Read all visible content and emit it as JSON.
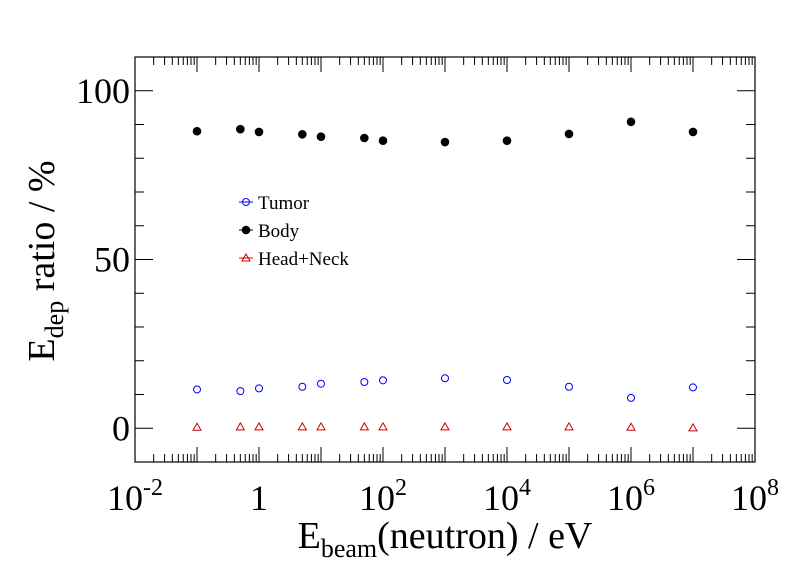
{
  "chart_data": {
    "type": "scatter",
    "xscale": "log",
    "xlim": [
      0.01,
      100000000
    ],
    "ylim": [
      -10,
      110
    ],
    "x_ticks": [
      0.01,
      1,
      100,
      10000,
      1000000,
      100000000
    ],
    "x_tick_labels": [
      {
        "base": "10",
        "exp": "-2"
      },
      {
        "base": "1",
        "exp": ""
      },
      {
        "base": "10",
        "exp": "2"
      },
      {
        "base": "10",
        "exp": "4"
      },
      {
        "base": "10",
        "exp": "6"
      },
      {
        "base": "10",
        "exp": "8"
      }
    ],
    "y_ticks": [
      0,
      50,
      100
    ],
    "y_tick_labels": [
      "0",
      "50",
      "100"
    ],
    "xlabel": {
      "main": "E",
      "sub": "beam",
      "rest": "(neutron) / eV"
    },
    "ylabel": {
      "main": "E",
      "sub": "dep",
      "rest": " ratio / %"
    },
    "legend_position": "center-left",
    "x": [
      0.1,
      0.5,
      1,
      5,
      10,
      50,
      100,
      1000,
      10000,
      100000,
      1000000,
      10000000
    ],
    "series": [
      {
        "name": "Tumor",
        "marker": "open-circle",
        "color": "#0000ff",
        "values": [
          11.5,
          11.0,
          11.8,
          12.3,
          13.2,
          13.7,
          14.2,
          14.8,
          14.3,
          12.3,
          9.0,
          12.1
        ]
      },
      {
        "name": "Body",
        "marker": "filled-circle",
        "color": "#000000",
        "values": [
          88.0,
          88.6,
          87.8,
          87.1,
          86.4,
          86.0,
          85.2,
          84.8,
          85.2,
          87.2,
          90.8,
          87.8
        ]
      },
      {
        "name": "Head+Neck",
        "marker": "open-triangle",
        "color": "#cc0000",
        "values": [
          0.3,
          0.4,
          0.4,
          0.4,
          0.4,
          0.4,
          0.4,
          0.4,
          0.4,
          0.4,
          0.3,
          0.1
        ]
      }
    ]
  }
}
